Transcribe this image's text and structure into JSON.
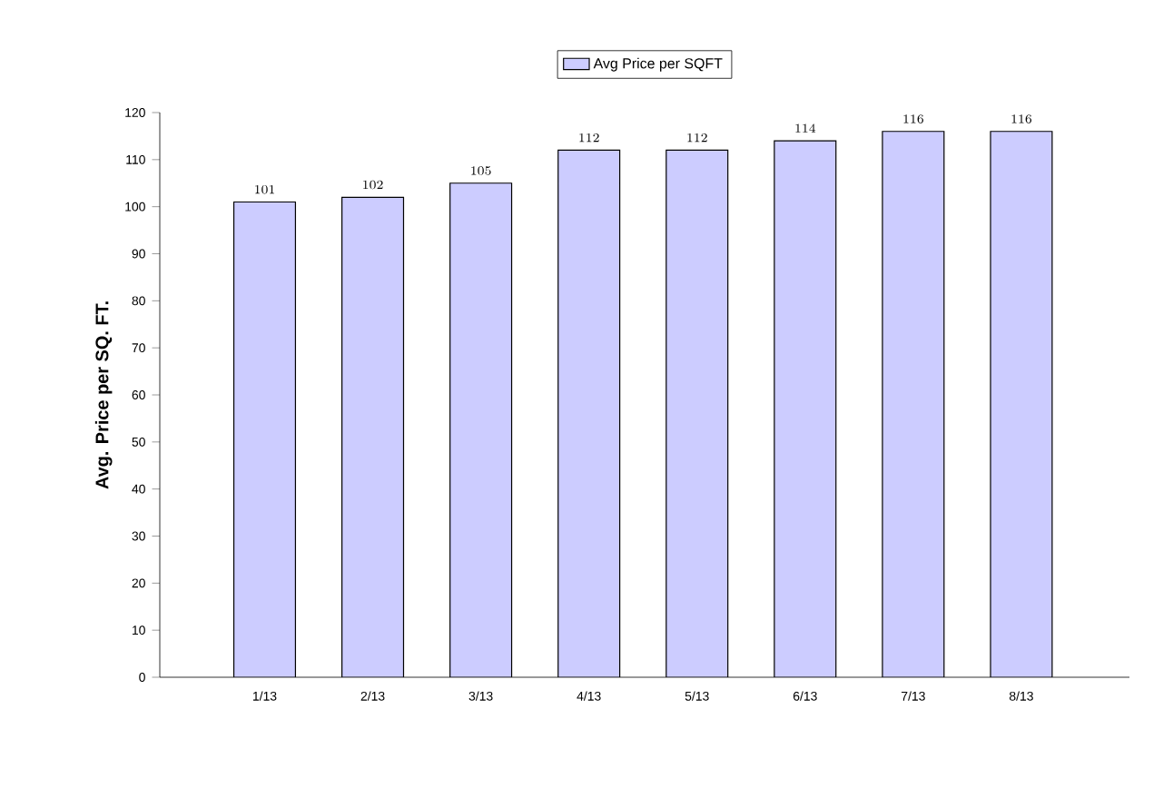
{
  "chart_data": {
    "type": "bar",
    "ylabel": "Avg. Price per SQ. FT.",
    "categories": [
      "1/13",
      "2/13",
      "3/13",
      "4/13",
      "5/13",
      "6/13",
      "7/13",
      "8/13"
    ],
    "series": [
      {
        "name": "Avg Price per SQFT",
        "color": "#ccccff",
        "values": [
          101,
          102,
          105,
          112,
          112,
          114,
          116,
          116
        ]
      }
    ],
    "ylim": [
      0,
      120
    ],
    "yticks": [
      0,
      10,
      20,
      30,
      40,
      50,
      60,
      70,
      80,
      90,
      100,
      110,
      120
    ],
    "data_labels": true,
    "legend": "top",
    "grid": false
  }
}
